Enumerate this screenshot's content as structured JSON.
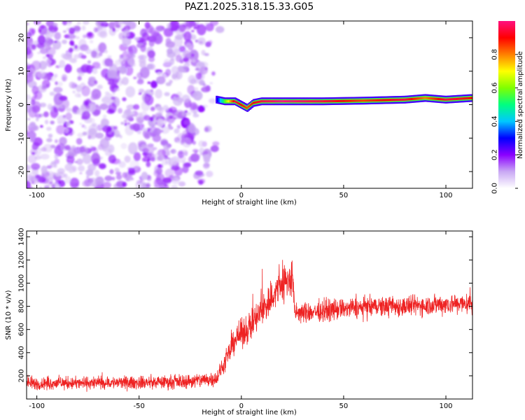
{
  "title": "PAZ1.2025.318.15.33.G05",
  "chart_data": [
    {
      "type": "heatmap",
      "name": "spectrogram",
      "xlabel": "Height of straight line (km)",
      "ylabel": "Frequency (Hz)",
      "xlim": [
        -105,
        113
      ],
      "ylim": [
        -25,
        25
      ],
      "xticks": [
        -100,
        -50,
        0,
        50,
        100
      ],
      "yticks": [
        -20,
        -10,
        0,
        10,
        20
      ],
      "colorbar": {
        "label": "Normalized spectral amplitude",
        "range": [
          0,
          1
        ],
        "ticks": [
          "0.0",
          "0.2",
          "0.4",
          "0.6",
          "0.8"
        ],
        "colormap": [
          "#ffffff",
          "#c9a8f4",
          "#8b00ff",
          "#0000ff",
          "#00c8ff",
          "#00ff80",
          "#80ff00",
          "#ffff00",
          "#ff8000",
          "#ff0000",
          "#ff1080"
        ]
      },
      "noise_region": {
        "x_from": -105,
        "x_to": -10,
        "freq_from": -25,
        "freq_to": 25,
        "amplitude": [
          0.0,
          0.15
        ]
      },
      "tone_track": [
        {
          "x": -12,
          "freq": 1.5,
          "amplitude": 0.25
        },
        {
          "x": -8,
          "freq": 1.0,
          "amplitude": 0.55
        },
        {
          "x": -3,
          "freq": 1.0,
          "amplitude": 0.95
        },
        {
          "x": 0,
          "freq": 0.0,
          "amplitude": 0.9
        },
        {
          "x": 3,
          "freq": -1.0,
          "amplitude": 0.85
        },
        {
          "x": 6,
          "freq": 0.5,
          "amplitude": 0.9
        },
        {
          "x": 10,
          "freq": 1.0,
          "amplitude": 0.95
        },
        {
          "x": 20,
          "freq": 1.0,
          "amplitude": 1.0
        },
        {
          "x": 40,
          "freq": 1.0,
          "amplitude": 0.95
        },
        {
          "x": 60,
          "freq": 1.2,
          "amplitude": 0.85
        },
        {
          "x": 80,
          "freq": 1.5,
          "amplitude": 0.95
        },
        {
          "x": 90,
          "freq": 2.0,
          "amplitude": 0.8
        },
        {
          "x": 100,
          "freq": 1.5,
          "amplitude": 0.95
        },
        {
          "x": 113,
          "freq": 2.0,
          "amplitude": 0.9
        }
      ]
    },
    {
      "type": "line",
      "name": "snr",
      "xlabel": "Height of straight line (km)",
      "ylabel": "SNR (10 * v/v)",
      "xlim": [
        -105,
        113
      ],
      "ylim": [
        0,
        1450
      ],
      "xticks": [
        -100,
        -50,
        0,
        50,
        100
      ],
      "yticks": [
        200,
        400,
        600,
        800,
        1000,
        1200,
        1400
      ],
      "color": "#ee2222",
      "series": [
        {
          "name": "SNR",
          "x": [
            -105,
            -100,
            -90,
            -80,
            -70,
            -60,
            -50,
            -40,
            -30,
            -20,
            -12,
            -7,
            -3,
            0,
            5,
            10,
            15,
            20,
            23,
            25,
            26,
            30,
            40,
            50,
            60,
            70,
            80,
            90,
            100,
            113
          ],
          "values": [
            140,
            130,
            140,
            135,
            140,
            140,
            140,
            145,
            150,
            160,
            180,
            350,
            520,
            560,
            640,
            760,
            880,
            1000,
            1020,
            1050,
            750,
            740,
            760,
            780,
            790,
            800,
            800,
            810,
            820,
            820
          ],
          "noise_amplitude": [
            60,
            50,
            50,
            50,
            50,
            50,
            50,
            50,
            55,
            60,
            60,
            80,
            100,
            110,
            120,
            140,
            150,
            170,
            160,
            160,
            80,
            80,
            80,
            80,
            80,
            80,
            80,
            80,
            80,
            80
          ]
        }
      ]
    }
  ]
}
